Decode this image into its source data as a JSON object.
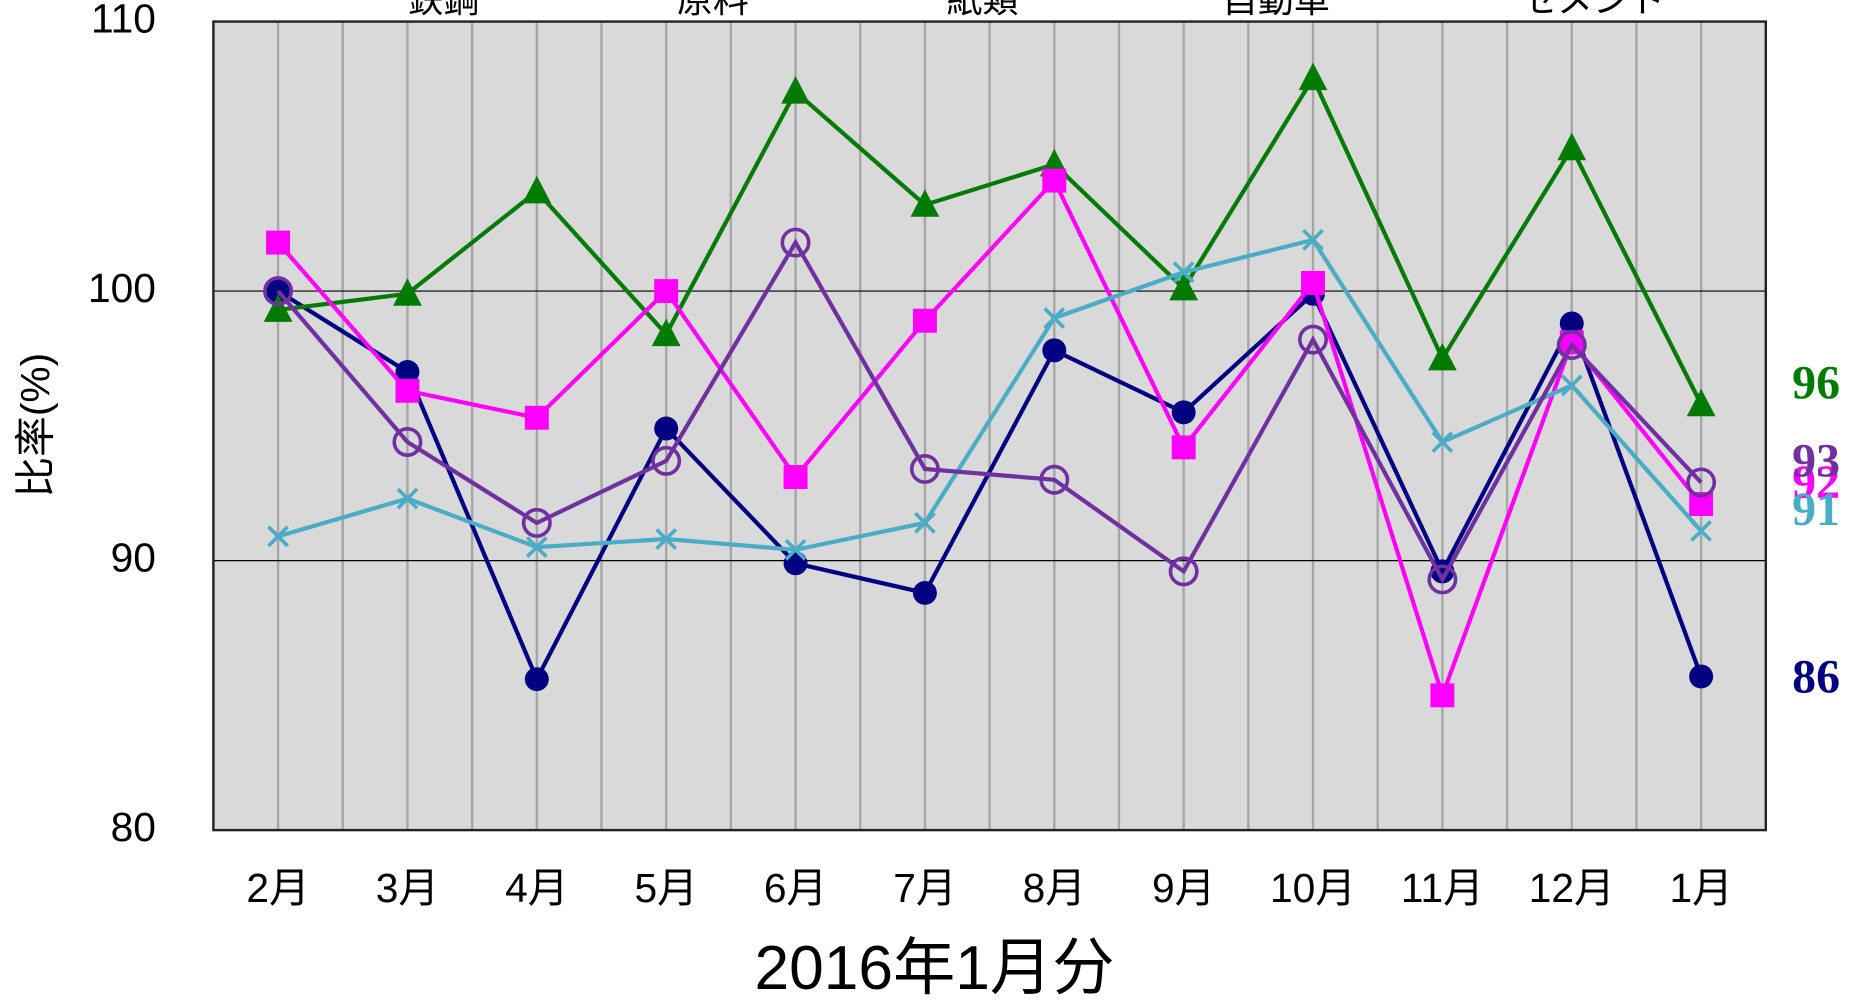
{
  "chart_data": {
    "type": "line",
    "x_label": "2016年1月分",
    "y_label": "比率(%)",
    "categories": [
      "2月",
      "3月",
      "4月",
      "5月",
      "6月",
      "7月",
      "8月",
      "9月",
      "10月",
      "11月",
      "12月",
      "1月"
    ],
    "ylim": [
      80,
      110
    ],
    "yticks": [
      80,
      90,
      100,
      110
    ],
    "grid": true,
    "series": [
      {
        "name": "鉄鋼",
        "color": "#000080",
        "marker": "circle",
        "end_label": "86",
        "values": [
          100.0,
          97.0,
          85.6,
          94.9,
          89.9,
          88.8,
          97.8,
          95.5,
          99.9,
          89.6,
          98.8,
          85.7
        ]
      },
      {
        "name": "原料",
        "color": "#007a00",
        "marker": "triangle",
        "end_label": "96",
        "values": [
          99.3,
          99.9,
          103.7,
          98.4,
          107.4,
          103.2,
          104.7,
          100.1,
          107.9,
          97.5,
          105.3,
          95.8
        ]
      },
      {
        "name": "紙類",
        "color": "#ff00ff",
        "marker": "square",
        "end_label": "92",
        "values": [
          101.8,
          96.3,
          95.3,
          100.0,
          93.1,
          98.9,
          104.1,
          94.2,
          100.3,
          85.0,
          98.1,
          92.1
        ]
      },
      {
        "name": "自動車",
        "color": "#4bacc6",
        "marker": "x",
        "end_label": "91",
        "values": [
          90.9,
          92.3,
          90.5,
          90.8,
          90.4,
          91.4,
          99.0,
          100.7,
          101.9,
          94.4,
          96.5,
          91.1
        ]
      },
      {
        "name": "セメント",
        "color": "#7030a0",
        "marker": "open-circle",
        "end_label": "93",
        "values": [
          100.0,
          94.4,
          91.4,
          93.7,
          101.8,
          93.4,
          93.0,
          89.6,
          98.2,
          89.3,
          98.0,
          92.9
        ]
      }
    ]
  }
}
